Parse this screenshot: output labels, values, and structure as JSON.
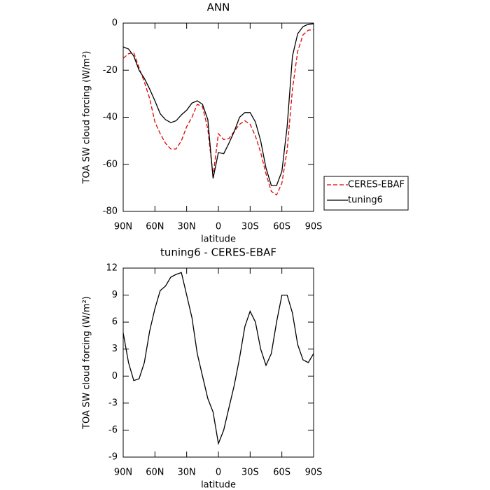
{
  "chart_data": [
    {
      "type": "line",
      "title": "ANN",
      "x_label": "latitude",
      "y_label": "TOA SW cloud forcing (W/m²)",
      "x": [
        90,
        85,
        80,
        75,
        70,
        65,
        60,
        55,
        50,
        45,
        40,
        35,
        30,
        25,
        20,
        15,
        10,
        5,
        0,
        -5,
        -10,
        -15,
        -20,
        -25,
        -30,
        -35,
        -40,
        -45,
        -50,
        -55,
        -60,
        -65,
        -70,
        -75,
        -80,
        -85,
        -90
      ],
      "series": [
        {
          "name": "CERES-EBAF",
          "color": "#e00000",
          "dash": true,
          "values": [
            -15,
            -13,
            -12.5,
            -19,
            -25,
            -32,
            -42,
            -47,
            -51,
            -53.5,
            -53.5,
            -50,
            -44,
            -40,
            -34.5,
            -35.5,
            -45,
            -65,
            -47,
            -49.5,
            -49,
            -46,
            -43,
            -41.5,
            -43,
            -48,
            -55,
            -64,
            -71.5,
            -73,
            -68,
            -54,
            -28,
            -12,
            -5,
            -3,
            -2.8
          ]
        },
        {
          "name": "tuning6",
          "color": "#000000",
          "dash": false,
          "values": [
            -10.1,
            -11,
            -14,
            -20,
            -23.5,
            -28,
            -33,
            -38.5,
            -41,
            -42.3,
            -41.5,
            -39,
            -37,
            -34,
            -33,
            -34.5,
            -41,
            -66,
            -55,
            -55.5,
            -51,
            -46,
            -40,
            -38,
            -38,
            -42,
            -50,
            -61.6,
            -69,
            -69,
            -63,
            -44,
            -14,
            -4.5,
            -1.5,
            -0.5,
            -0.3
          ]
        }
      ],
      "xlim": [
        90,
        -90
      ],
      "xticks": [
        {
          "value": 90,
          "label": "90N"
        },
        {
          "value": 60,
          "label": "60N"
        },
        {
          "value": 30,
          "label": "30N"
        },
        0,
        {
          "value": -30,
          "label": "30S"
        },
        {
          "value": -60,
          "label": "60S"
        },
        {
          "value": -90,
          "label": "90S"
        }
      ],
      "ylim": [
        -80,
        0
      ],
      "yticks": [
        0,
        -20,
        -40,
        -60,
        -80
      ],
      "legend": "outside-right-bottom"
    },
    {
      "type": "line",
      "title": "tuning6 - CERES-EBAF",
      "x_label": "latitude",
      "y_label": "TOA SW cloud forcing (W/m²)",
      "x": [
        90,
        85,
        80,
        75,
        70,
        65,
        60,
        55,
        50,
        45,
        40,
        35,
        30,
        25,
        20,
        15,
        10,
        5,
        0,
        -5,
        -10,
        -15,
        -20,
        -25,
        -30,
        -35,
        -40,
        -45,
        -50,
        -55,
        -60,
        -65,
        -70,
        -75,
        -80,
        -85,
        -90
      ],
      "values": [
        4.8,
        1.5,
        -0.5,
        -0.3,
        1.5,
        5,
        7.5,
        9.5,
        10,
        11,
        11.3,
        11.5,
        9,
        6.5,
        2.5,
        0,
        -2.5,
        -4,
        -7.5,
        -6,
        -3.5,
        -1,
        2,
        5.5,
        7.2,
        6,
        3,
        1.2,
        2.5,
        6,
        9,
        9,
        7,
        3.5,
        1.8,
        1.5,
        2.5
      ],
      "color": "#000000",
      "xlim": [
        90,
        -90
      ],
      "xticks": [
        {
          "value": 90,
          "label": "90N"
        },
        {
          "value": 60,
          "label": "60N"
        },
        {
          "value": 30,
          "label": "30N"
        },
        0,
        {
          "value": -30,
          "label": "30S"
        },
        {
          "value": -60,
          "label": "60S"
        },
        {
          "value": -90,
          "label": "90S"
        }
      ],
      "ylim": [
        -9,
        12
      ],
      "yticks": [
        12,
        9,
        6,
        3,
        0,
        -3,
        -6,
        -9
      ]
    }
  ]
}
